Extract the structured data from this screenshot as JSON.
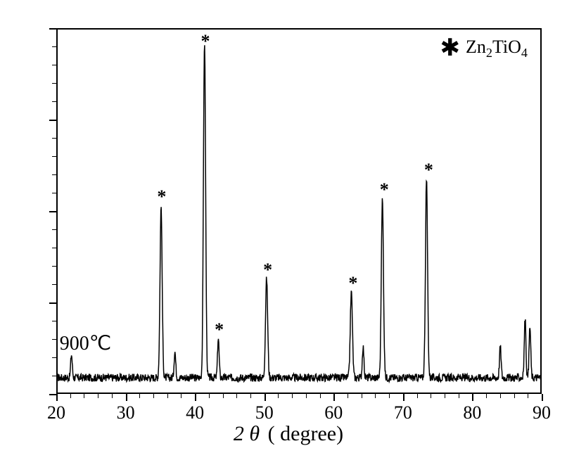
{
  "chart": {
    "type": "xrd-line",
    "xlim": [
      20,
      90
    ],
    "ylim": [
      0,
      1100
    ],
    "x_major_ticks": [
      20,
      30,
      40,
      50,
      60,
      70,
      80,
      90
    ],
    "x_minor_step": 2,
    "y_major_count": 4,
    "y_minor_count": 20,
    "background_color": "#ffffff",
    "axis_color": "#000000",
    "line_color": "#000000",
    "line_width": 1.5,
    "tick_fontsize": 26,
    "axis_label_fontsize": 30,
    "x_axis_label_theta": "2 θ",
    "x_axis_label_unit": "(   degree)",
    "baseline_intensity": 45,
    "noise_amplitude": 12,
    "peaks": [
      {
        "x": 35.0,
        "intensity": 520,
        "width": 0.4,
        "marker": "*"
      },
      {
        "x": 41.3,
        "intensity": 1020,
        "width": 0.4,
        "marker": "*"
      },
      {
        "x": 43.3,
        "intensity": 120,
        "width": 0.3,
        "marker": "*"
      },
      {
        "x": 50.3,
        "intensity": 300,
        "width": 0.4,
        "marker": "*"
      },
      {
        "x": 62.6,
        "intensity": 260,
        "width": 0.4,
        "marker": "*"
      },
      {
        "x": 67.1,
        "intensity": 540,
        "width": 0.4,
        "marker": "*"
      },
      {
        "x": 73.5,
        "intensity": 600,
        "width": 0.4,
        "marker": "*"
      },
      {
        "x": 84.2,
        "intensity": 95,
        "width": 0.3,
        "marker": null
      },
      {
        "x": 87.8,
        "intensity": 180,
        "width": 0.3,
        "marker": null
      },
      {
        "x": 88.5,
        "intensity": 155,
        "width": 0.3,
        "marker": null
      },
      {
        "x": 22.0,
        "intensity": 70,
        "width": 0.3,
        "marker": null
      },
      {
        "x": 37.0,
        "intensity": 80,
        "width": 0.3,
        "marker": null
      },
      {
        "x": 64.3,
        "intensity": 95,
        "width": 0.3,
        "marker": null
      }
    ],
    "legend": {
      "marker": "✱",
      "label_html": "Zn<sub>2</sub>TiO<sub>4</sub>",
      "label_plain": "Zn2TiO4",
      "fontsize": 26
    },
    "annotation": {
      "text": "900℃",
      "fontsize": 28,
      "position_x_deg": 24,
      "position_y_intensity": 130
    }
  }
}
